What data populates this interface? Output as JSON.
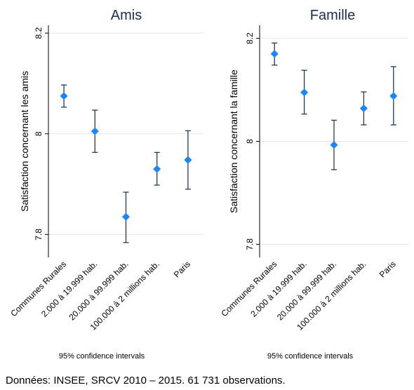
{
  "footer": {
    "source": "Données: INSEE, SRCV 2010 – 2015. 61 731 observations."
  },
  "style": {
    "marker_color": "#1a85ff",
    "ci_color": "#1f3b5a",
    "grid_color": "#e6e6e6",
    "title_color": "#1c2f4d"
  },
  "chart_data": [
    {
      "type": "scatter",
      "title": "Amis",
      "ylabel": "Satisfaction concernant les amis",
      "note": "95% confidence intervals",
      "categories": [
        "Communes Rurales",
        "2.000 à 19.999 hab.",
        "20.000 à 99.999 hab.",
        "100.000 à 2 millions hab.",
        "Paris"
      ],
      "values": [
        8.075,
        8.005,
        7.835,
        7.93,
        7.948
      ],
      "ci_lower": [
        8.053,
        7.963,
        7.784,
        7.898,
        7.89
      ],
      "ci_upper": [
        8.097,
        8.047,
        7.884,
        7.963,
        8.006
      ],
      "ylim": [
        7.76,
        8.21
      ],
      "yticks": [
        "7.8",
        "8",
        "8.2"
      ],
      "grid": true,
      "legend": "none"
    },
    {
      "type": "scatter",
      "title": "Famille",
      "ylabel": "Satisfaction concernant la famille",
      "note": "95% confidence intervals",
      "categories": [
        "Communes Rurales",
        "2.000 à 19.999 hab.",
        "20.000 à 99.999 hab.",
        "100.000 à 2 millions hab.",
        "Paris"
      ],
      "values": [
        8.17,
        8.095,
        7.993,
        8.064,
        8.088
      ],
      "ci_lower": [
        8.148,
        8.053,
        7.945,
        8.032,
        8.032
      ],
      "ci_upper": [
        8.191,
        8.138,
        8.041,
        8.096,
        8.145
      ],
      "ylim": [
        7.78,
        8.22
      ],
      "yticks": [
        "7.8",
        "8",
        "8.2"
      ],
      "grid": true,
      "legend": "none"
    }
  ]
}
